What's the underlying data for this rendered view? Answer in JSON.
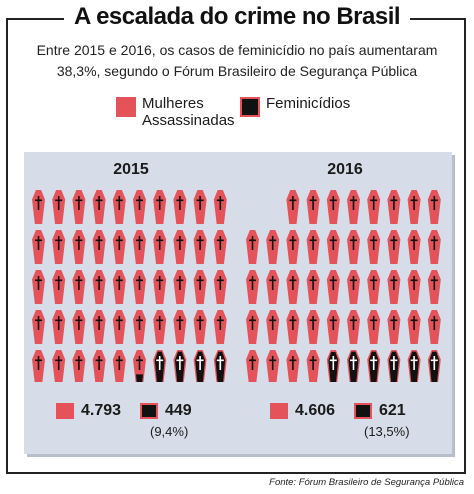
{
  "title": "A escalada do crime no Brasil",
  "subtitle": {
    "line1": "Entre 2015 e 2016, os casos de feminicídio no país aumentaram",
    "line2": "38,3%, segundo o Fórum Brasileiro de Segurança Pública"
  },
  "legend": {
    "women_line1": "Mulheres",
    "women_line2": "Assassinadas",
    "femicide": "Feminicídios"
  },
  "colors": {
    "women": "#e35359",
    "femicide": "#111111",
    "cross": "#111111",
    "panel": "#d7dde8"
  },
  "chart_data": [
    {
      "type": "pictogram",
      "year": "2015",
      "icon": "coffin-icon",
      "categories": [
        "Mulheres Assassinadas",
        "Feminicídios"
      ],
      "values": [
        4793,
        449
      ],
      "labels": [
        "4.793",
        "449"
      ],
      "femicide_share_label": "(9,4%)",
      "femicide_share": 9.4
    },
    {
      "type": "pictogram",
      "year": "2016",
      "icon": "coffin-icon",
      "categories": [
        "Mulheres Assassinadas",
        "Feminicídios"
      ],
      "values": [
        4606,
        621
      ],
      "labels": [
        "4.606",
        "621"
      ],
      "femicide_share_label": "(13,5%)",
      "femicide_share": 13.5
    }
  ],
  "source": "Fonte: Fórum Brasileiro de Segurança Pública"
}
